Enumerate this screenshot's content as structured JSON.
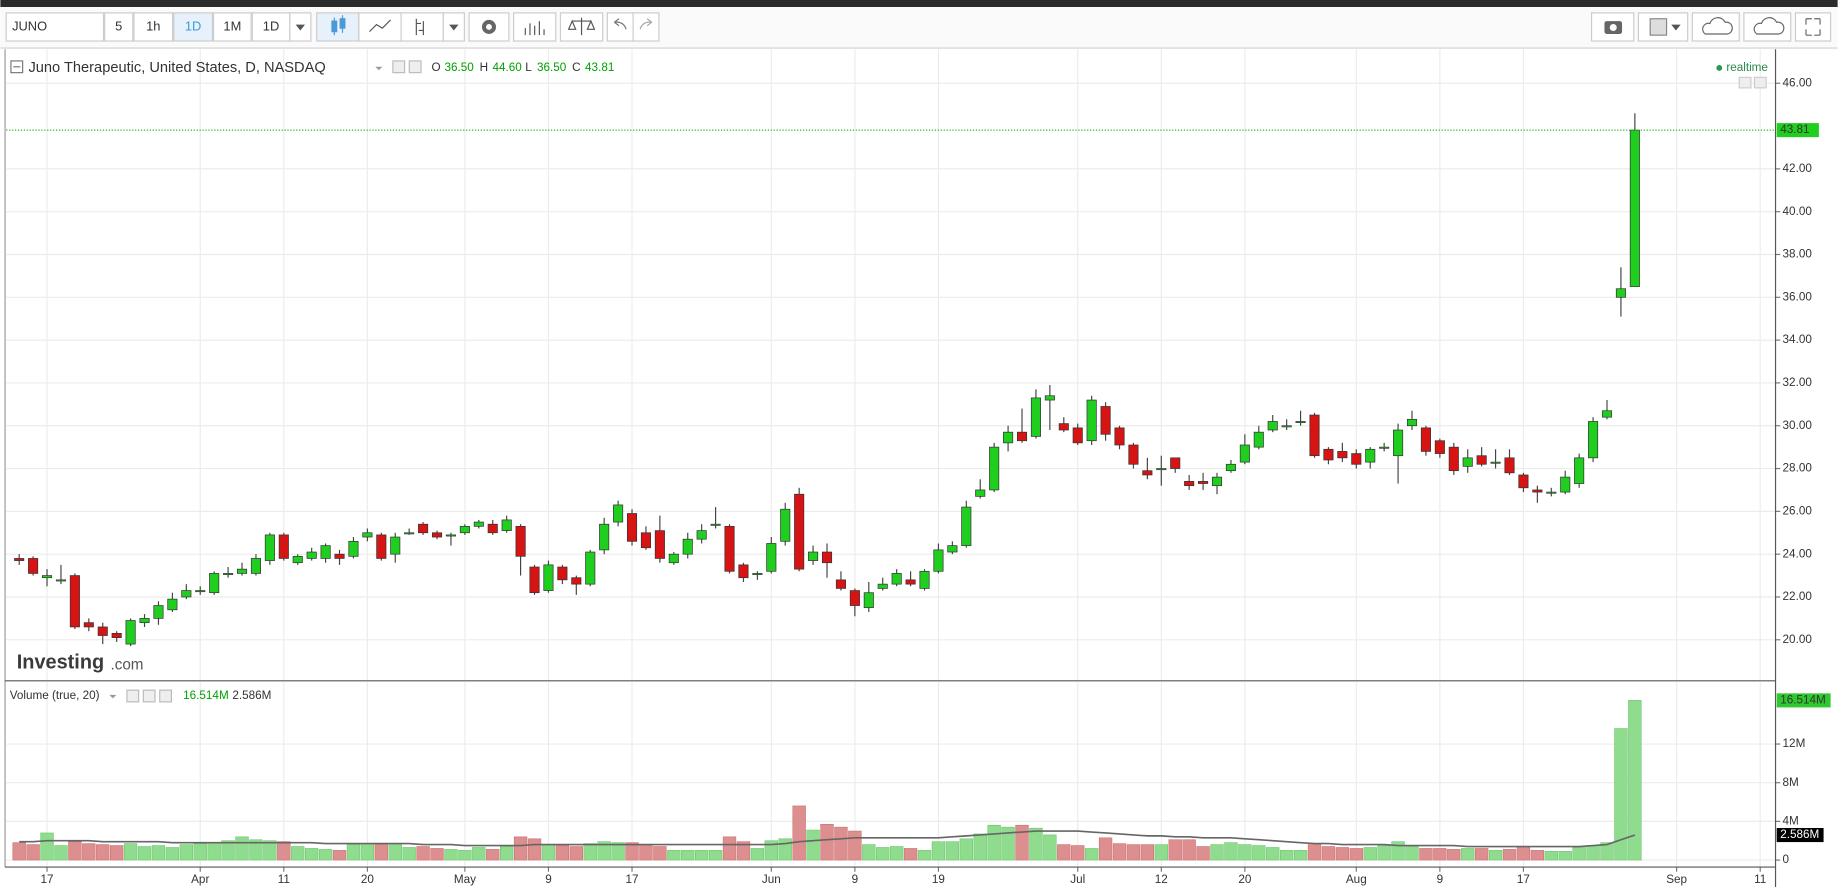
{
  "toolbar": {
    "symbol": "JUNO",
    "intervals": [
      "5",
      "1h",
      "1D",
      "1M",
      "1D"
    ]
  },
  "realtime": "realtime",
  "watermark": {
    "brand": "Investing",
    "suffix": ".com"
  },
  "chart_data": [
    {
      "type": "candlestick",
      "title": "Juno Therapeutic, United States, D, NASDAQ",
      "legend": [
        {
          "key": "O",
          "label": "36.50"
        },
        {
          "key": "H",
          "label": "44.60"
        },
        {
          "key": "L",
          "label": "36.50"
        },
        {
          "key": "C",
          "label": "43.81"
        }
      ],
      "up_color": "#1fce1f",
      "down_color": "#d61414",
      "open": [
        23.8,
        23.8,
        22.9,
        22.8,
        23.0,
        20.8,
        20.6,
        20.3,
        19.8,
        20.8,
        21.0,
        21.4,
        22.0,
        22.3,
        22.2,
        23.1,
        23.1,
        23.1,
        23.7,
        24.9,
        23.6,
        23.8,
        23.8,
        24.0,
        23.9,
        24.8,
        24.9,
        24.0,
        25.0,
        25.4,
        25.0,
        24.9,
        25.0,
        25.3,
        25.4,
        25.1,
        25.3,
        23.4,
        22.3,
        23.4,
        22.9,
        22.6,
        24.2,
        25.5,
        25.9,
        25.0,
        25.1,
        23.6,
        24.0,
        24.7,
        25.4,
        25.3,
        23.5,
        23.1,
        23.2,
        24.6,
        26.8,
        23.7,
        24.1,
        22.8,
        22.3,
        21.5,
        22.4,
        22.6,
        22.8,
        22.4,
        23.2,
        24.1,
        24.4,
        26.7,
        27.0,
        29.2,
        29.7,
        29.5,
        31.2,
        30.1,
        29.9,
        29.3,
        30.9,
        29.9,
        29.1,
        27.9,
        28.0,
        28.5,
        27.4,
        27.4,
        27.2,
        27.9,
        28.3,
        29.0,
        29.8,
        30.0,
        30.2,
        30.5,
        28.9,
        28.8,
        28.7,
        28.3,
        29.0,
        28.6,
        30.0,
        29.9,
        29.3,
        29.0,
        28.1,
        28.6,
        28.3,
        28.5,
        27.7,
        27.0,
        26.9,
        26.9,
        27.3,
        28.5,
        30.4,
        36.0,
        36.5
      ],
      "high": [
        24.0,
        23.9,
        23.3,
        23.5,
        23.1,
        21.0,
        20.8,
        20.4,
        21.0,
        21.2,
        21.8,
        22.2,
        22.6,
        22.5,
        23.2,
        23.4,
        23.6,
        24.0,
        25.0,
        25.0,
        24.0,
        24.3,
        24.5,
        24.2,
        24.8,
        25.2,
        25.0,
        25.0,
        25.2,
        25.5,
        25.1,
        25.0,
        25.4,
        25.6,
        25.6,
        25.8,
        25.4,
        23.5,
        23.7,
        23.5,
        23.0,
        24.2,
        25.7,
        26.5,
        26.1,
        25.3,
        25.8,
        24.1,
        25.0,
        25.4,
        26.2,
        25.4,
        23.6,
        23.2,
        24.8,
        26.4,
        27.1,
        24.4,
        24.5,
        23.2,
        22.4,
        22.7,
        22.9,
        23.3,
        23.2,
        23.3,
        24.5,
        24.6,
        26.5,
        27.5,
        29.2,
        30.0,
        30.8,
        31.7,
        31.9,
        30.4,
        30.1,
        31.4,
        31.1,
        30.0,
        29.2,
        28.5,
        28.6,
        28.5,
        27.7,
        27.8,
        27.8,
        28.4,
        29.6,
        30.0,
        30.5,
        30.3,
        30.7,
        30.6,
        29.0,
        29.2,
        28.9,
        29.0,
        29.2,
        30.1,
        30.7,
        30.0,
        29.4,
        29.2,
        28.9,
        29.0,
        28.9,
        28.9,
        27.8,
        27.2,
        27.1,
        27.9,
        28.7,
        30.4,
        31.2,
        37.4,
        44.6
      ],
      "low": [
        23.5,
        23.0,
        22.5,
        22.6,
        20.5,
        20.4,
        19.8,
        19.9,
        19.7,
        20.6,
        20.7,
        21.3,
        21.9,
        22.1,
        22.1,
        22.9,
        23.0,
        23.0,
        23.5,
        23.7,
        23.5,
        23.7,
        23.6,
        23.5,
        23.8,
        24.6,
        23.7,
        23.6,
        24.9,
        24.9,
        24.7,
        24.4,
        24.9,
        25.2,
        24.9,
        25.0,
        23.0,
        22.1,
        22.2,
        22.6,
        22.1,
        22.5,
        24.0,
        25.3,
        24.4,
        24.2,
        23.6,
        23.5,
        23.8,
        24.5,
        25.2,
        23.1,
        22.7,
        22.8,
        23.1,
        24.4,
        23.2,
        23.5,
        22.9,
        22.3,
        21.1,
        21.3,
        22.3,
        22.5,
        22.5,
        22.3,
        23.1,
        24.0,
        24.3,
        26.6,
        26.9,
        28.8,
        29.2,
        29.4,
        29.8,
        29.7,
        29.1,
        29.1,
        29.3,
        28.9,
        28.0,
        27.5,
        27.2,
        27.8,
        27.0,
        27.0,
        26.8,
        27.8,
        28.2,
        28.9,
        29.7,
        29.8,
        30.0,
        28.5,
        28.2,
        28.3,
        28.0,
        28.0,
        28.8,
        27.3,
        29.8,
        28.6,
        28.5,
        27.7,
        27.8,
        28.1,
        28.0,
        27.7,
        26.9,
        26.4,
        26.7,
        26.8,
        27.1,
        28.3,
        30.3,
        35.1,
        36.5
      ],
      "close": [
        23.7,
        23.1,
        23.0,
        22.8,
        20.6,
        20.6,
        20.2,
        20.1,
        20.9,
        21.0,
        21.6,
        21.9,
        22.3,
        22.3,
        23.1,
        23.1,
        23.3,
        23.8,
        24.9,
        23.8,
        23.9,
        24.1,
        24.4,
        23.8,
        24.6,
        25.0,
        23.8,
        24.8,
        25.0,
        25.0,
        24.8,
        24.9,
        25.3,
        25.5,
        25.0,
        25.6,
        23.9,
        22.2,
        23.5,
        22.8,
        22.6,
        24.1,
        25.4,
        26.3,
        24.6,
        24.3,
        23.8,
        24.0,
        24.7,
        25.1,
        25.4,
        23.2,
        22.9,
        23.1,
        24.5,
        26.1,
        23.3,
        24.1,
        23.6,
        22.4,
        21.6,
        22.2,
        22.6,
        23.1,
        22.6,
        23.2,
        24.2,
        24.4,
        26.2,
        27.0,
        29.0,
        29.7,
        29.3,
        31.3,
        31.4,
        29.8,
        29.2,
        31.2,
        29.6,
        29.1,
        28.2,
        27.7,
        28.0,
        28.0,
        27.2,
        27.3,
        27.6,
        28.2,
        29.1,
        29.7,
        30.2,
        30.0,
        30.2,
        28.6,
        28.4,
        28.5,
        28.2,
        28.9,
        29.0,
        29.8,
        30.3,
        28.8,
        28.7,
        27.9,
        28.5,
        28.2,
        28.3,
        27.8,
        27.1,
        26.9,
        26.9,
        27.6,
        28.5,
        30.2,
        30.7,
        36.4,
        43.81
      ],
      "xlim": [
        -0.93,
        126.1
      ],
      "xticks": [
        {
          "value": 2,
          "label": "17"
        },
        {
          "value": 13,
          "label": "Apr"
        },
        {
          "value": 19,
          "label": "11"
        },
        {
          "value": 25,
          "label": "20"
        },
        {
          "value": 32,
          "label": "May"
        },
        {
          "value": 38,
          "label": "9"
        },
        {
          "value": 44,
          "label": "17"
        },
        {
          "value": 54,
          "label": "Jun"
        },
        {
          "value": 60,
          "label": "9"
        },
        {
          "value": 66,
          "label": "19"
        },
        {
          "value": 76,
          "label": "Jul"
        },
        {
          "value": 82,
          "label": "12"
        },
        {
          "value": 88,
          "label": "20"
        },
        {
          "value": 96,
          "label": "Aug"
        },
        {
          "value": 102,
          "label": "9"
        },
        {
          "value": 108,
          "label": "17"
        },
        {
          "value": 119,
          "label": "Sep"
        },
        {
          "value": 125,
          "label": "11"
        }
      ],
      "ylim": [
        18.14,
        47.59
      ],
      "yticks": [
        {
          "value": 20,
          "label": "20.00"
        },
        {
          "value": 22,
          "label": "22.00"
        },
        {
          "value": 24,
          "label": "24.00"
        },
        {
          "value": 26,
          "label": "26.00"
        },
        {
          "value": 28,
          "label": "28.00"
        },
        {
          "value": 30,
          "label": "30.00"
        },
        {
          "value": 32,
          "label": "32.00"
        },
        {
          "value": 34,
          "label": "34.00"
        },
        {
          "value": 36,
          "label": "36.00"
        },
        {
          "value": 38,
          "label": "38.00"
        },
        {
          "value": 40,
          "label": "40.00"
        },
        {
          "value": 42,
          "label": "42.00"
        },
        {
          "value": 46,
          "label": "46.00"
        }
      ],
      "grid": true
    },
    {
      "type": "bar",
      "title": "Volume (true, 20)",
      "ylim": [
        0,
        18.3
      ],
      "yticks": [
        0,
        {
          "value": 4,
          "label": "4M"
        },
        {
          "value": 8,
          "label": "8M"
        },
        {
          "value": 12,
          "label": "12M"
        }
      ],
      "grid": true,
      "series": [
        {
          "up_color": "#8fdc8f",
          "down_color": "#dd8e8e",
          "last_label": "16.514M",
          "values": [
            1.8,
            1.6,
            2.8,
            1.5,
            1.9,
            1.7,
            1.6,
            1.5,
            1.7,
            1.4,
            1.5,
            1.3,
            1.6,
            1.7,
            1.8,
            2.0,
            2.4,
            2.1,
            2.0,
            1.9,
            1.4,
            1.2,
            1.1,
            1.0,
            1.6,
            1.7,
            1.6,
            1.7,
            1.3,
            1.4,
            1.2,
            1.1,
            1.0,
            1.3,
            1.1,
            1.4,
            2.4,
            2.2,
            1.6,
            1.5,
            1.4,
            1.7,
            1.9,
            1.8,
            1.8,
            1.6,
            1.4,
            1.0,
            1.0,
            1.0,
            1.0,
            2.4,
            1.9,
            1.2,
            2.0,
            2.2,
            5.6,
            3.1,
            3.7,
            3.4,
            3.0,
            1.6,
            1.3,
            1.4,
            1.2,
            1.0,
            1.9,
            1.9,
            2.2,
            2.7,
            3.6,
            3.4,
            3.6,
            3.3,
            2.6,
            1.6,
            1.5,
            1.2,
            2.3,
            1.7,
            1.6,
            1.6,
            1.6,
            2.1,
            2.1,
            1.4,
            1.6,
            1.8,
            1.6,
            1.5,
            1.3,
            1.0,
            1.0,
            1.6,
            1.4,
            1.3,
            1.2,
            1.3,
            1.5,
            1.9,
            1.4,
            1.2,
            1.2,
            1.1,
            1.2,
            1.2,
            1.0,
            1.1,
            1.4,
            1.0,
            0.9,
            0.9,
            1.3,
            1.5,
            1.8,
            13.6,
            16.514
          ]
        },
        {
          "type": "line",
          "color": "#666666",
          "last_label": "2.586M",
          "values": [
            1.9,
            1.9,
            2.0,
            2.0,
            2.0,
            2.0,
            1.9,
            1.9,
            1.9,
            1.9,
            1.9,
            1.8,
            1.8,
            1.8,
            1.8,
            1.8,
            1.8,
            1.8,
            1.8,
            1.8,
            1.8,
            1.8,
            1.7,
            1.7,
            1.7,
            1.7,
            1.7,
            1.7,
            1.7,
            1.6,
            1.6,
            1.6,
            1.5,
            1.5,
            1.5,
            1.5,
            1.5,
            1.6,
            1.6,
            1.6,
            1.6,
            1.6,
            1.6,
            1.6,
            1.6,
            1.6,
            1.6,
            1.6,
            1.6,
            1.6,
            1.6,
            1.6,
            1.6,
            1.6,
            1.6,
            1.7,
            1.9,
            2.0,
            2.1,
            2.2,
            2.3,
            2.3,
            2.3,
            2.3,
            2.3,
            2.3,
            2.3,
            2.4,
            2.5,
            2.6,
            2.7,
            2.8,
            2.9,
            3.0,
            3.0,
            3.0,
            3.0,
            2.9,
            2.8,
            2.7,
            2.6,
            2.5,
            2.5,
            2.4,
            2.4,
            2.3,
            2.3,
            2.3,
            2.2,
            2.1,
            2.0,
            1.9,
            1.8,
            1.7,
            1.7,
            1.6,
            1.6,
            1.6,
            1.6,
            1.5,
            1.5,
            1.5,
            1.5,
            1.5,
            1.4,
            1.4,
            1.4,
            1.4,
            1.4,
            1.4,
            1.4,
            1.4,
            1.4,
            1.5,
            1.6,
            2.1,
            2.586
          ]
        }
      ]
    }
  ]
}
